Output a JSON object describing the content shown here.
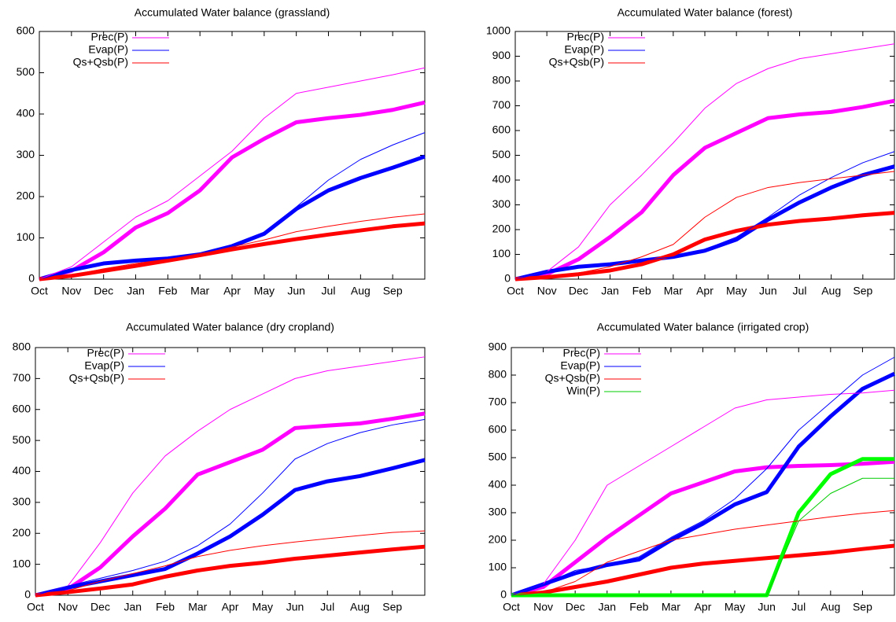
{
  "chart_data": [
    {
      "type": "line",
      "title": "Accumulated Water balance (grassland)",
      "categories": [
        "Oct",
        "Nov",
        "Dec",
        "Jan",
        "Feb",
        "Mar",
        "Apr",
        "May",
        "Jun",
        "Jul",
        "Aug",
        "Sep",
        null
      ],
      "ylim": [
        0,
        600
      ],
      "yticks": [
        0,
        100,
        200,
        300,
        400,
        500,
        600
      ],
      "legend": "upper left",
      "series": [
        {
          "name": "Prec(P)",
          "color": "#ff00ff",
          "line_width": 1,
          "values": [
            0,
            30,
            90,
            150,
            190,
            250,
            310,
            390,
            450,
            465,
            480,
            495,
            512
          ]
        },
        {
          "name": "Evap(P)",
          "color": "#0000ff",
          "line_width": 1,
          "values": [
            0,
            20,
            38,
            45,
            50,
            60,
            80,
            110,
            175,
            240,
            290,
            325,
            355
          ]
        },
        {
          "name": "Qs+Qsb(P)",
          "color": "#ff0000",
          "line_width": 1,
          "values": [
            0,
            10,
            25,
            38,
            48,
            60,
            78,
            95,
            115,
            128,
            140,
            150,
            158
          ]
        },
        {
          "color": "#ff00ff",
          "line_width": 5,
          "values": [
            0,
            20,
            65,
            125,
            160,
            215,
            295,
            340,
            380,
            390,
            398,
            410,
            428
          ]
        },
        {
          "color": "#0000ff",
          "line_width": 5,
          "values": [
            0,
            22,
            38,
            45,
            50,
            60,
            80,
            110,
            170,
            215,
            245,
            270,
            297
          ]
        },
        {
          "color": "#ff0000",
          "line_width": 5,
          "values": [
            0,
            8,
            20,
            32,
            45,
            58,
            72,
            85,
            97,
            108,
            118,
            128,
            135
          ]
        }
      ]
    },
    {
      "type": "line",
      "title": "Accumulated Water balance (forest)",
      "categories": [
        "Oct",
        "Nov",
        "Dec",
        "Jan",
        "Feb",
        "Mar",
        "Apr",
        "May",
        "Jun",
        "Jul",
        "Aug",
        "Sep",
        null
      ],
      "ylim": [
        0,
        1000
      ],
      "yticks": [
        0,
        100,
        200,
        300,
        400,
        500,
        600,
        700,
        800,
        900,
        1000
      ],
      "legend": "upper left",
      "series": [
        {
          "name": "Prec(P)",
          "color": "#ff00ff",
          "line_width": 1,
          "values": [
            0,
            30,
            130,
            300,
            420,
            550,
            690,
            790,
            850,
            890,
            910,
            930,
            950
          ]
        },
        {
          "name": "Evap(P)",
          "color": "#0000ff",
          "line_width": 1,
          "values": [
            0,
            30,
            50,
            60,
            75,
            90,
            120,
            170,
            250,
            340,
            410,
            470,
            515
          ]
        },
        {
          "name": "Qs+Qsb(P)",
          "color": "#ff0000",
          "line_width": 1,
          "values": [
            0,
            10,
            25,
            50,
            90,
            140,
            250,
            330,
            370,
            390,
            405,
            420,
            435
          ]
        },
        {
          "color": "#ff00ff",
          "line_width": 5,
          "values": [
            0,
            20,
            80,
            170,
            270,
            420,
            530,
            590,
            650,
            665,
            675,
            695,
            720
          ]
        },
        {
          "color": "#0000ff",
          "line_width": 5,
          "values": [
            0,
            30,
            50,
            60,
            75,
            90,
            115,
            160,
            240,
            310,
            370,
            420,
            455
          ]
        },
        {
          "color": "#ff0000",
          "line_width": 5,
          "values": [
            0,
            8,
            20,
            35,
            60,
            100,
            160,
            195,
            220,
            235,
            245,
            258,
            268
          ]
        }
      ]
    },
    {
      "type": "line",
      "title": "Accumulated Water balance (dry cropland)",
      "categories": [
        "Oct",
        "Nov",
        "Dec",
        "Jan",
        "Feb",
        "Mar",
        "Apr",
        "May",
        "Jun",
        "Jul",
        "Aug",
        "Sep",
        null
      ],
      "ylim": [
        0,
        800
      ],
      "yticks": [
        0,
        100,
        200,
        300,
        400,
        500,
        600,
        700,
        800
      ],
      "legend": "upper left",
      "series": [
        {
          "name": "Prec(P)",
          "color": "#ff00ff",
          "line_width": 1,
          "values": [
            0,
            30,
            170,
            330,
            450,
            530,
            600,
            650,
            700,
            725,
            740,
            755,
            770
          ]
        },
        {
          "name": "Evap(P)",
          "color": "#0000ff",
          "line_width": 1,
          "values": [
            0,
            30,
            55,
            80,
            110,
            160,
            230,
            330,
            440,
            490,
            525,
            550,
            568
          ]
        },
        {
          "name": "Qs+Qsb(P)",
          "color": "#ff0000",
          "line_width": 1,
          "values": [
            0,
            15,
            45,
            70,
            95,
            125,
            145,
            160,
            172,
            183,
            193,
            203,
            208
          ]
        },
        {
          "color": "#ff00ff",
          "line_width": 5,
          "values": [
            0,
            20,
            90,
            190,
            280,
            390,
            430,
            470,
            540,
            548,
            555,
            570,
            587
          ]
        },
        {
          "color": "#0000ff",
          "line_width": 5,
          "values": [
            0,
            25,
            45,
            65,
            85,
            135,
            190,
            260,
            340,
            368,
            385,
            410,
            437
          ]
        },
        {
          "color": "#ff0000",
          "line_width": 5,
          "values": [
            0,
            10,
            22,
            35,
            60,
            80,
            95,
            105,
            118,
            128,
            138,
            148,
            157
          ]
        }
      ]
    },
    {
      "type": "line",
      "title": "Accumulated Water balance (irrigated crop)",
      "categories": [
        "Oct",
        "Nov",
        "Dec",
        "Jan",
        "Feb",
        "Mar",
        "Apr",
        "May",
        "Jun",
        "Jul",
        "Aug",
        "Sep",
        null
      ],
      "ylim": [
        0,
        900
      ],
      "yticks": [
        0,
        100,
        200,
        300,
        400,
        500,
        600,
        700,
        800,
        900
      ],
      "legend": "upper left",
      "series": [
        {
          "name": "Prec(P)",
          "color": "#ff00ff",
          "line_width": 1,
          "values": [
            0,
            40,
            200,
            400,
            470,
            540,
            610,
            680,
            710,
            720,
            730,
            735,
            745
          ]
        },
        {
          "name": "Evap(P)",
          "color": "#0000ff",
          "line_width": 1,
          "values": [
            0,
            40,
            90,
            110,
            140,
            210,
            270,
            350,
            460,
            600,
            700,
            800,
            865
          ]
        },
        {
          "name": "Qs+Qsb(P)",
          "color": "#ff0000",
          "line_width": 1,
          "values": [
            0,
            10,
            50,
            120,
            160,
            200,
            220,
            240,
            255,
            270,
            285,
            298,
            308
          ]
        },
        {
          "name": "Win(P)",
          "color": "#00cc00",
          "line_width": 1,
          "values": [
            0,
            0,
            0,
            0,
            0,
            0,
            0,
            0,
            0,
            270,
            370,
            425,
            425
          ]
        },
        {
          "color": "#ff00ff",
          "line_width": 5,
          "values": [
            0,
            30,
            120,
            210,
            290,
            370,
            410,
            450,
            465,
            470,
            473,
            478,
            485
          ]
        },
        {
          "color": "#0000ff",
          "line_width": 5,
          "values": [
            0,
            40,
            80,
            110,
            130,
            200,
            260,
            330,
            375,
            540,
            650,
            750,
            805
          ]
        },
        {
          "color": "#ff0000",
          "line_width": 5,
          "values": [
            0,
            10,
            30,
            50,
            75,
            100,
            115,
            125,
            135,
            145,
            155,
            168,
            180
          ]
        },
        {
          "color": "#00ff00",
          "line_width": 5,
          "values": [
            0,
            0,
            0,
            0,
            0,
            0,
            0,
            0,
            0,
            300,
            440,
            495,
            495
          ]
        }
      ]
    }
  ]
}
